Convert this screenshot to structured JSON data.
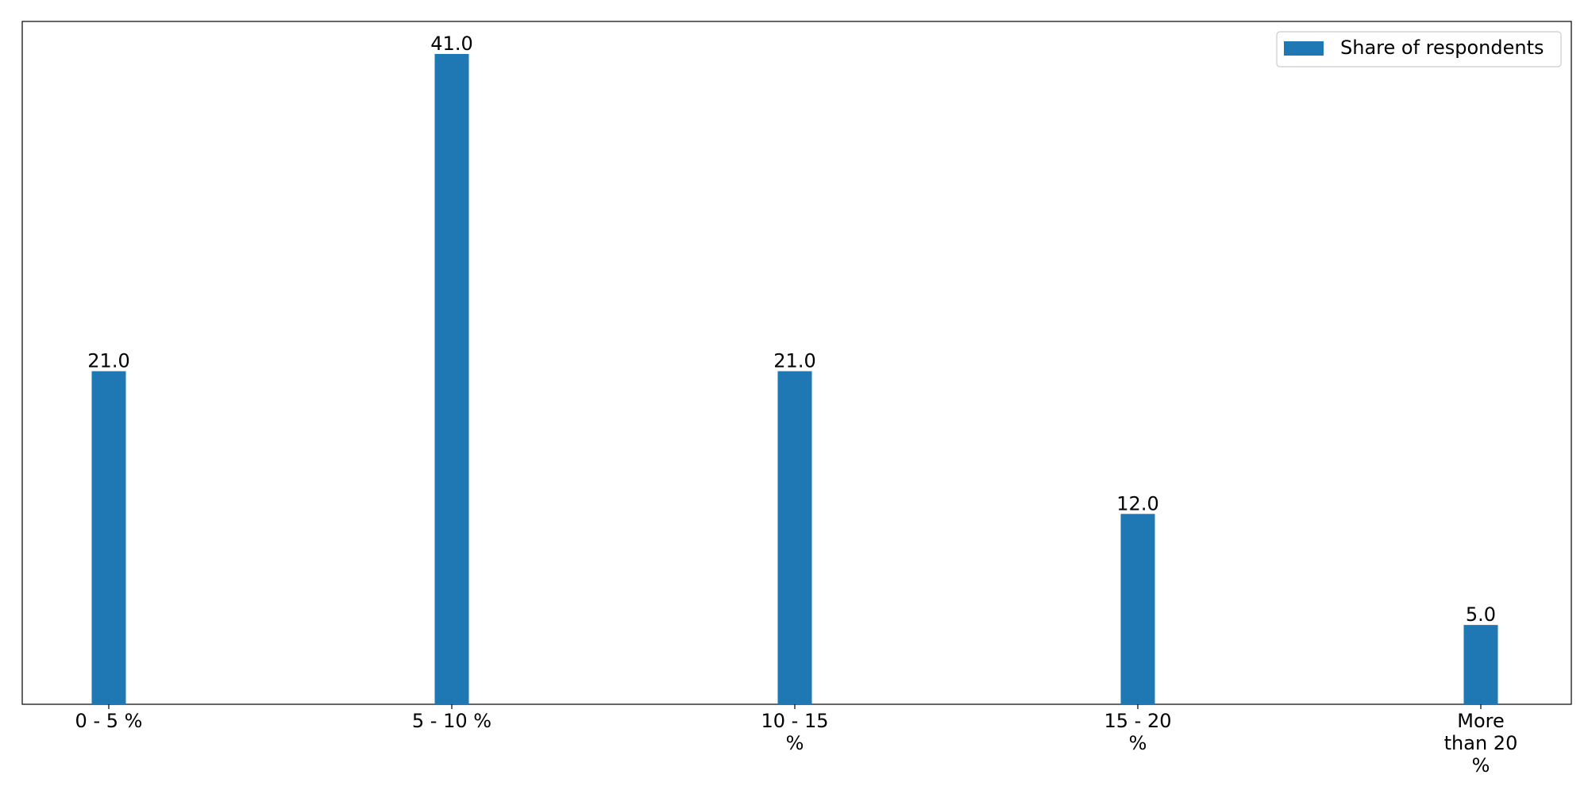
{
  "chart_data": {
    "type": "bar",
    "categories": [
      [
        "0 - 5 %"
      ],
      [
        "5 - 10 %"
      ],
      [
        "10 - 15",
        "%"
      ],
      [
        "15 - 20",
        "%"
      ],
      [
        "More",
        "than 20",
        "%"
      ]
    ],
    "series": [
      {
        "name": "Share of respondents",
        "color": "#1f77b4",
        "values": [
          21.0,
          41.0,
          21.0,
          12.0,
          5.0
        ],
        "value_labels": [
          "21.0",
          "41.0",
          "21.0",
          "12.0",
          "5.0"
        ]
      }
    ],
    "title": "",
    "xlabel": "",
    "ylabel": "",
    "ylim": [
      0,
      43.05
    ],
    "y_axis_visible": false,
    "grid": false,
    "legend_position": "top-right"
  }
}
